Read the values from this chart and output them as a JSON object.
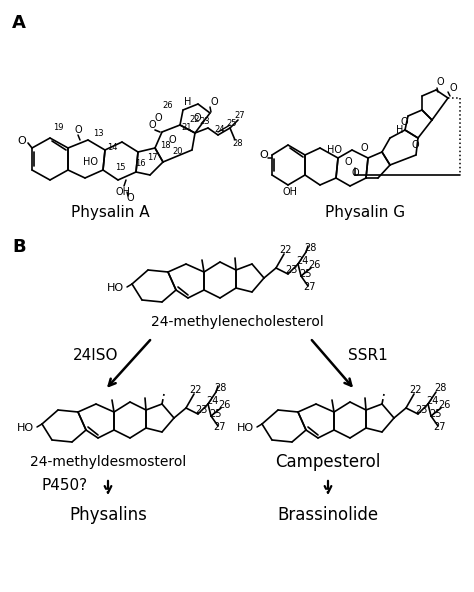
{
  "background_color": "#ffffff",
  "panel_A_label": "A",
  "panel_B_label": "B",
  "physalin_A_label": "Physalin A",
  "physalin_G_label": "Physalin G",
  "compound_24methylene": "24-methylenecholesterol",
  "compound_24methyl": "24-methyldesmosterol",
  "compound_campesterol": "Campesterol",
  "compound_physalins": "Physalins",
  "compound_brassinolide": "Brassinolide",
  "enzyme_24ISO": "24ISO",
  "enzyme_SSR1": "SSR1",
  "enzyme_P450": "P450?",
  "text_color": "#000000"
}
